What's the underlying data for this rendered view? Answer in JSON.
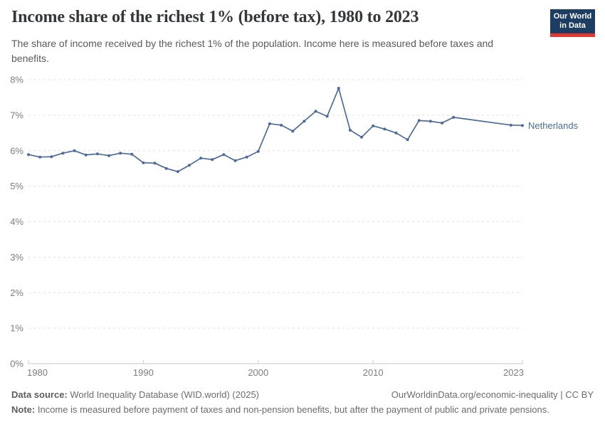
{
  "header": {
    "title": "Income share of the richest 1% (before tax), 1980 to 2023",
    "subtitle": "The share of income received by the richest 1% of the population. Income here is measured before taxes and benefits.",
    "logo": {
      "line1": "Our World",
      "line2": "in Data",
      "bg_color": "#1d3d63",
      "accent_color": "#e23a30"
    }
  },
  "chart_data": {
    "type": "line",
    "title": "Income share of the richest 1% (before tax), 1980 to 2023",
    "unit": "%",
    "xlim": [
      1980,
      2023
    ],
    "ylim": [
      0,
      8
    ],
    "yticks": [
      0,
      1,
      2,
      3,
      4,
      5,
      6,
      7,
      8
    ],
    "xticks": [
      1980,
      1990,
      2000,
      2010,
      2023
    ],
    "grid": "dashed-horizontal",
    "legend_position": "entity-label-right-of-line",
    "colors": {
      "line": "#4c6a9c",
      "gridline": "#e0e0e0",
      "axis": "#c9c9c9",
      "tick_label": "#7d7d7d"
    },
    "series": [
      {
        "name": "Netherlands",
        "x": [
          1980,
          1981,
          1982,
          1983,
          1984,
          1985,
          1986,
          1987,
          1988,
          1989,
          1990,
          1991,
          1992,
          1993,
          1994,
          1995,
          1996,
          1997,
          1998,
          1999,
          2000,
          2001,
          2002,
          2003,
          2004,
          2005,
          2006,
          2007,
          2008,
          2009,
          2010,
          2011,
          2012,
          2013,
          2014,
          2015,
          2016,
          2017,
          2018,
          2019,
          2020,
          2021,
          2022,
          2023
        ],
        "values": [
          5.89,
          5.82,
          5.83,
          5.93,
          6.0,
          5.88,
          5.91,
          5.86,
          5.93,
          5.9,
          5.66,
          5.65,
          5.5,
          5.41,
          5.59,
          5.79,
          5.75,
          5.89,
          5.72,
          5.82,
          5.98,
          6.76,
          6.72,
          6.55,
          6.83,
          7.11,
          6.97,
          7.76,
          6.58,
          6.38,
          6.7,
          6.61,
          6.5,
          6.31,
          6.85,
          6.83,
          6.78,
          6.94,
          null,
          null,
          null,
          null,
          6.72,
          6.71
        ]
      }
    ]
  },
  "footer": {
    "datasource_label": "Data source:",
    "datasource_value": " World Inequality Database (WID.world) (2025)",
    "rights": "OurWorldinData.org/economic-inequality | CC BY",
    "note_label": "Note:",
    "note_value": " Income is measured before payment of taxes and non-pension benefits, but after the payment of public and private pensions."
  }
}
